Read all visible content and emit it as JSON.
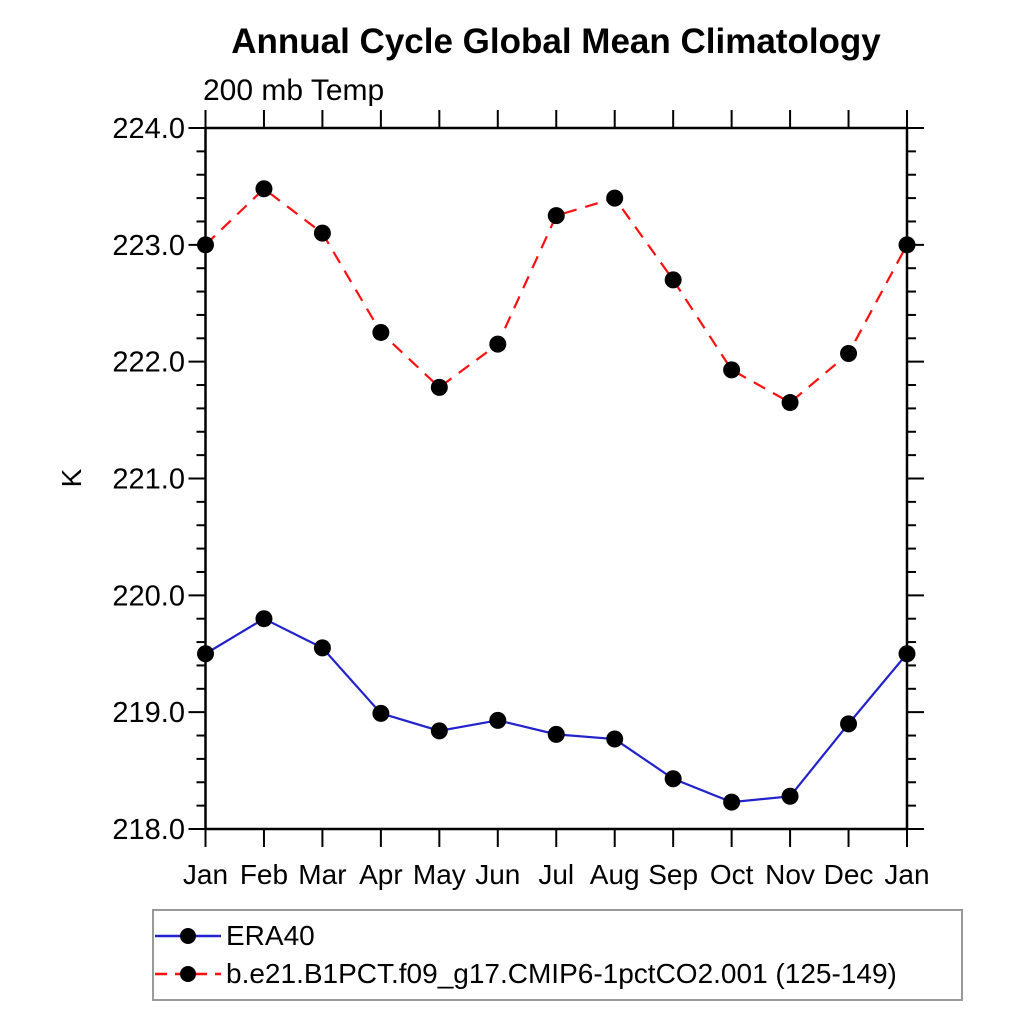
{
  "page": {
    "background": "#ffffff"
  },
  "chart_data": {
    "type": "line",
    "title": "Annual Cycle Global Mean Climatology",
    "subtitle": "200 mb Temp",
    "xlabel": "",
    "ylabel": "K",
    "categories": [
      "Jan",
      "Feb",
      "Mar",
      "Apr",
      "May",
      "Jun",
      "Jul",
      "Aug",
      "Sep",
      "Oct",
      "Nov",
      "Dec",
      "Jan"
    ],
    "ylim": [
      218.0,
      224.0
    ],
    "y_major_tick_labels": [
      "224.0",
      "223.0",
      "222.0",
      "221.0",
      "220.0",
      "219.0",
      "218.0"
    ],
    "y_minor_step": 0.2,
    "grid": false,
    "legend_position": "bottom-left-box",
    "axis_color": "#000000",
    "marker": "filled-circle",
    "marker_color": "#000000",
    "series": [
      {
        "name": "ERA40",
        "color": "#2222cc",
        "style": "solid",
        "values": [
          219.5,
          219.8,
          219.55,
          218.99,
          218.84,
          218.93,
          218.81,
          218.77,
          218.43,
          218.23,
          218.28,
          218.9,
          219.5
        ]
      },
      {
        "name": "b.e21.B1PCT.f09_g17.CMIP6-1pctCO2.001 (125-149)",
        "color": "#ff1010",
        "style": "dashed",
        "values": [
          223.0,
          223.48,
          223.1,
          222.25,
          221.78,
          222.15,
          223.25,
          223.4,
          222.7,
          221.93,
          221.65,
          222.07,
          223.0
        ]
      }
    ]
  }
}
